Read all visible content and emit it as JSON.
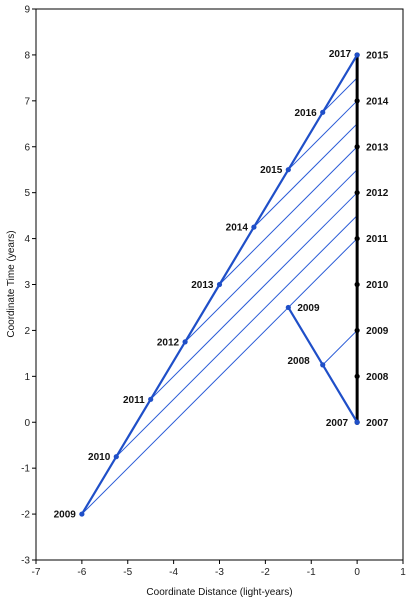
{
  "chart_data": {
    "type": "line",
    "xlabel": "Coordinate Distance (light-years)",
    "ylabel": "Coordinate Time (years)",
    "xlim": [
      -7,
      1
    ],
    "ylim": [
      -3,
      9
    ],
    "x_ticks": [
      -7,
      -6,
      -5,
      -4,
      -3,
      -2,
      -1,
      0,
      1
    ],
    "y_ticks": [
      -3,
      -2,
      -1,
      0,
      1,
      2,
      3,
      4,
      5,
      6,
      7,
      8,
      9
    ],
    "grid": false,
    "colors": {
      "worldline_blue": "#1f4fc8",
      "stationary_black": "#000000",
      "signal_blue": "#2a5bd7"
    },
    "series": [
      {
        "points": [
          {
            "x": 0,
            "y": 0,
            "label": "2007"
          },
          {
            "x": 0,
            "y": 1,
            "label": "2008"
          },
          {
            "x": 0,
            "y": 2,
            "label": "2009"
          },
          {
            "x": 0,
            "y": 3,
            "label": "2010"
          },
          {
            "x": 0,
            "y": 4,
            "label": "2011"
          },
          {
            "x": 0,
            "y": 5,
            "label": "2012"
          },
          {
            "x": 0,
            "y": 6,
            "label": "2013"
          },
          {
            "x": 0,
            "y": 7,
            "label": "2014"
          },
          {
            "x": 0,
            "y": 8,
            "label": "2015"
          }
        ]
      },
      {
        "points": [
          {
            "x": 0,
            "y": 0,
            "label": "2007"
          },
          {
            "x": -0.75,
            "y": 1.25,
            "label": "2008"
          },
          {
            "x": -1.5,
            "y": 2.5,
            "label": "2009"
          }
        ]
      },
      {
        "points": [
          {
            "x": -6,
            "y": -2,
            "label": "2009"
          },
          {
            "x": -5.25,
            "y": -0.75,
            "label": "2010"
          },
          {
            "x": -4.5,
            "y": 0.5,
            "label": "2011"
          },
          {
            "x": -3.75,
            "y": 1.75,
            "label": "2012"
          },
          {
            "x": -3,
            "y": 3,
            "label": "2013"
          },
          {
            "x": -2.25,
            "y": 4.25,
            "label": "2014"
          },
          {
            "x": -1.5,
            "y": 5.5,
            "label": "2015"
          },
          {
            "x": -0.75,
            "y": 6.75,
            "label": "2016"
          },
          {
            "x": 0,
            "y": 8,
            "label": "2017"
          }
        ]
      }
    ],
    "light_signals": [
      {
        "from": [
          -6,
          -2
        ],
        "to": [
          0,
          4
        ]
      },
      {
        "from": [
          -5.25,
          -0.75
        ],
        "to": [
          0,
          4.5
        ]
      },
      {
        "from": [
          -4.5,
          0.5
        ],
        "to": [
          0,
          5
        ]
      },
      {
        "from": [
          -3.75,
          1.75
        ],
        "to": [
          0,
          5.5
        ]
      },
      {
        "from": [
          -3,
          3
        ],
        "to": [
          0,
          6
        ]
      },
      {
        "from": [
          -2.25,
          4.25
        ],
        "to": [
          0,
          6.5
        ]
      },
      {
        "from": [
          -1.5,
          5.5
        ],
        "to": [
          0,
          7
        ]
      },
      {
        "from": [
          -0.75,
          6.75
        ],
        "to": [
          0,
          7.5
        ]
      },
      {
        "from": [
          -0.75,
          1.25
        ],
        "to": [
          0,
          2
        ]
      }
    ]
  }
}
